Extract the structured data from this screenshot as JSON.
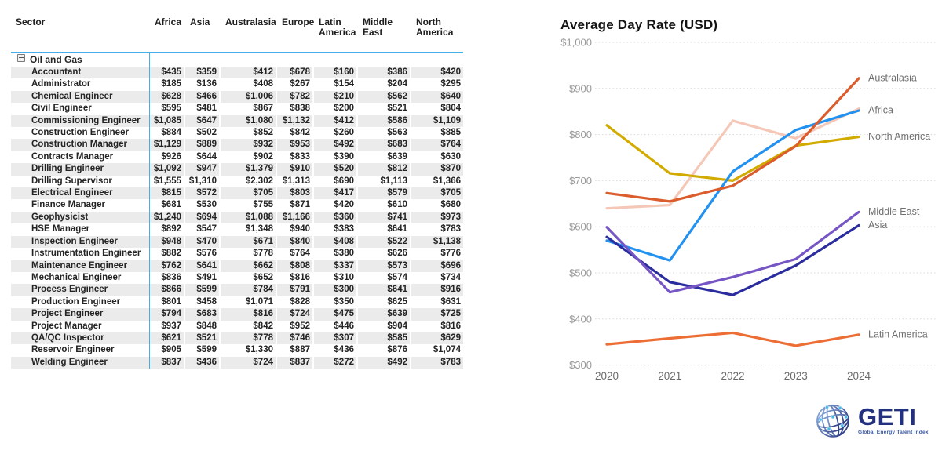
{
  "table": {
    "sector_header": "Sector",
    "region_headers": [
      "Africa",
      "Asia",
      "Australasia",
      "Europe",
      "Latin America",
      "Middle East",
      "North America"
    ],
    "group_label": "Oil and Gas",
    "rows": [
      {
        "label": "Accountant",
        "values": [
          "$435",
          "$359",
          "$412",
          "$678",
          "$160",
          "$386",
          "$420"
        ]
      },
      {
        "label": "Administrator",
        "values": [
          "$185",
          "$136",
          "$408",
          "$267",
          "$154",
          "$204",
          "$295"
        ]
      },
      {
        "label": "Chemical Engineer",
        "values": [
          "$628",
          "$466",
          "$1,006",
          "$782",
          "$210",
          "$562",
          "$640"
        ]
      },
      {
        "label": "Civil Engineer",
        "values": [
          "$595",
          "$481",
          "$867",
          "$838",
          "$200",
          "$521",
          "$804"
        ]
      },
      {
        "label": "Commissioning Engineer",
        "values": [
          "$1,085",
          "$647",
          "$1,080",
          "$1,132",
          "$412",
          "$586",
          "$1,109"
        ]
      },
      {
        "label": "Construction Engineer",
        "values": [
          "$884",
          "$502",
          "$852",
          "$842",
          "$260",
          "$563",
          "$885"
        ]
      },
      {
        "label": "Construction Manager",
        "values": [
          "$1,129",
          "$889",
          "$932",
          "$953",
          "$492",
          "$683",
          "$764"
        ]
      },
      {
        "label": "Contracts Manager",
        "values": [
          "$926",
          "$644",
          "$902",
          "$833",
          "$390",
          "$639",
          "$630"
        ]
      },
      {
        "label": "Drilling Engineer",
        "values": [
          "$1,092",
          "$947",
          "$1,379",
          "$910",
          "$520",
          "$812",
          "$870"
        ]
      },
      {
        "label": "Drilling Supervisor",
        "values": [
          "$1,555",
          "$1,310",
          "$2,302",
          "$1,313",
          "$690",
          "$1,113",
          "$1,366"
        ]
      },
      {
        "label": "Electrical Engineer",
        "values": [
          "$815",
          "$572",
          "$705",
          "$803",
          "$417",
          "$579",
          "$705"
        ]
      },
      {
        "label": "Finance Manager",
        "values": [
          "$681",
          "$530",
          "$755",
          "$871",
          "$420",
          "$610",
          "$680"
        ]
      },
      {
        "label": "Geophysicist",
        "values": [
          "$1,240",
          "$694",
          "$1,088",
          "$1,166",
          "$360",
          "$741",
          "$973"
        ]
      },
      {
        "label": "HSE Manager",
        "values": [
          "$892",
          "$547",
          "$1,348",
          "$940",
          "$383",
          "$641",
          "$783"
        ]
      },
      {
        "label": "Inspection Engineer",
        "values": [
          "$948",
          "$470",
          "$671",
          "$840",
          "$408",
          "$522",
          "$1,138"
        ]
      },
      {
        "label": "Instrumentation Engineer",
        "values": [
          "$882",
          "$576",
          "$778",
          "$764",
          "$380",
          "$626",
          "$776"
        ]
      },
      {
        "label": "Maintenance Engineer",
        "values": [
          "$762",
          "$641",
          "$662",
          "$808",
          "$337",
          "$573",
          "$696"
        ]
      },
      {
        "label": "Mechanical Engineer",
        "values": [
          "$836",
          "$491",
          "$652",
          "$816",
          "$310",
          "$574",
          "$734"
        ]
      },
      {
        "label": "Process Engineer",
        "values": [
          "$866",
          "$599",
          "$784",
          "$791",
          "$300",
          "$641",
          "$916"
        ]
      },
      {
        "label": "Production Engineer",
        "values": [
          "$801",
          "$458",
          "$1,071",
          "$828",
          "$350",
          "$625",
          "$631"
        ]
      },
      {
        "label": "Project Engineer",
        "values": [
          "$794",
          "$683",
          "$816",
          "$724",
          "$475",
          "$639",
          "$725"
        ]
      },
      {
        "label": "Project Manager",
        "values": [
          "$937",
          "$848",
          "$842",
          "$952",
          "$446",
          "$904",
          "$816"
        ]
      },
      {
        "label": "QA/QC Inspector",
        "values": [
          "$621",
          "$521",
          "$778",
          "$746",
          "$307",
          "$585",
          "$629"
        ]
      },
      {
        "label": "Reservoir Engineer",
        "values": [
          "$905",
          "$599",
          "$1,330",
          "$887",
          "$436",
          "$876",
          "$1,074"
        ]
      },
      {
        "label": "Welding Engineer",
        "values": [
          "$837",
          "$436",
          "$724",
          "$837",
          "$272",
          "$492",
          "$783"
        ]
      }
    ]
  },
  "chart_data": {
    "type": "line",
    "title": "Average Day Rate (USD)",
    "x_labels": [
      "2020",
      "2021",
      "2022",
      "2023",
      "2024"
    ],
    "ylim": [
      300,
      1000
    ],
    "ytick_labels": [
      "$300",
      "$400",
      "$500",
      "$600",
      "$700",
      "$800",
      "$900",
      "$1,000"
    ],
    "grid": "horizontal-dotted",
    "legend_position": "line-end-labels-right",
    "series": [
      {
        "name": "Africa",
        "label": "Africa",
        "color": "#2391ef",
        "values": [
          570,
          527,
          720,
          810,
          852
        ]
      },
      {
        "name": "Asia",
        "label": "Asia",
        "color": "#2b2d9e",
        "values": [
          578,
          480,
          452,
          516,
          603
        ]
      },
      {
        "name": "Australasia",
        "label": "Australasia",
        "color": "#db5c2c",
        "values": [
          673,
          655,
          689,
          775,
          922
        ]
      },
      {
        "name": "Europe",
        "label": "",
        "color": "#f4c7b7",
        "values": [
          640,
          647,
          830,
          792,
          856
        ]
      },
      {
        "name": "Latin America",
        "label": "Latin America",
        "color": "#ec6e35",
        "values": [
          345,
          358,
          370,
          342,
          366
        ]
      },
      {
        "name": "Middle East",
        "label": "Middle East",
        "color": "#7655c5",
        "values": [
          599,
          458,
          491,
          530,
          632
        ]
      },
      {
        "name": "North America",
        "label": "North America",
        "color": "#d2ab00",
        "values": [
          820,
          716,
          700,
          776,
          795
        ]
      }
    ]
  },
  "logo": {
    "text": "GETI",
    "subtitle": "Global Energy Talent Index"
  },
  "colors": {
    "row_alt": "#ebebeb",
    "divider_blue": "#41b0e6",
    "grid": "#d9d9d9",
    "ytick_text": "#9a9a9a",
    "xtick_text": "#6b6b6b",
    "series_label_text": "#707070"
  }
}
